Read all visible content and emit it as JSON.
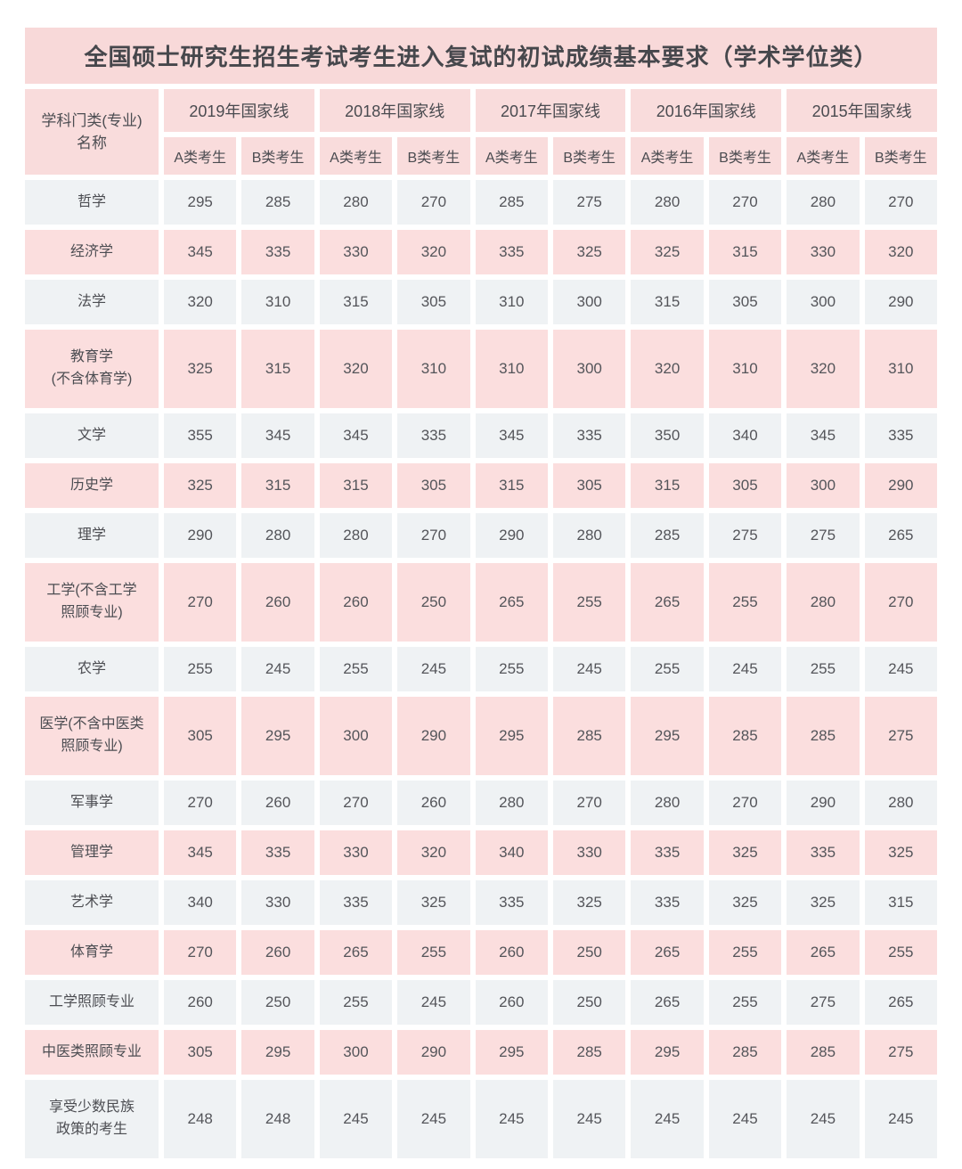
{
  "title": "全国硕士研究生招生考试考生进入复试的初试成绩基本要求（学术学位类）",
  "colors": {
    "title_bg": "#f8d9d9",
    "header_bg": "#f9dcdc",
    "row_pink": "#fbdede",
    "row_gray": "#eff2f4",
    "text": "#4c4d52"
  },
  "chart_data": {
    "type": "table",
    "title": "全国硕士研究生招生考试考生进入复试的初试成绩基本要求（学术学位类）",
    "corner_header": "学科门类(专业)\n名称",
    "year_groups": [
      "2019年国家线",
      "2018年国家线",
      "2017年国家线",
      "2016年国家线",
      "2015年国家线"
    ],
    "sub_headers": [
      "A类考生",
      "B类考生"
    ],
    "rows": [
      {
        "label": "哲学",
        "values": [
          295,
          285,
          280,
          270,
          285,
          275,
          280,
          270,
          280,
          270
        ]
      },
      {
        "label": "经济学",
        "values": [
          345,
          335,
          330,
          320,
          335,
          325,
          325,
          315,
          330,
          320
        ]
      },
      {
        "label": "法学",
        "values": [
          320,
          310,
          315,
          305,
          310,
          300,
          315,
          305,
          300,
          290
        ]
      },
      {
        "label": "教育学(不含体育学)",
        "label_display": "教育学\n(不含体育学)",
        "values": [
          325,
          315,
          320,
          310,
          310,
          300,
          320,
          310,
          320,
          310
        ]
      },
      {
        "label": "文学",
        "values": [
          355,
          345,
          345,
          335,
          345,
          335,
          350,
          340,
          345,
          335
        ]
      },
      {
        "label": "历史学",
        "values": [
          325,
          315,
          315,
          305,
          315,
          305,
          315,
          305,
          300,
          290
        ]
      },
      {
        "label": "理学",
        "values": [
          290,
          280,
          280,
          270,
          290,
          280,
          285,
          275,
          275,
          265
        ]
      },
      {
        "label": "工学(不含工学照顾专业)",
        "label_display": "工学(不含工学\n照顾专业)",
        "values": [
          270,
          260,
          260,
          250,
          265,
          255,
          265,
          255,
          280,
          270
        ]
      },
      {
        "label": "农学",
        "values": [
          255,
          245,
          255,
          245,
          255,
          245,
          255,
          245,
          255,
          245
        ]
      },
      {
        "label": "医学(不含中医类照顾专业)",
        "label_display": "医学(不含中医类\n照顾专业)",
        "values": [
          305,
          295,
          300,
          290,
          295,
          285,
          295,
          285,
          285,
          275
        ]
      },
      {
        "label": "军事学",
        "values": [
          270,
          260,
          270,
          260,
          280,
          270,
          280,
          270,
          290,
          280
        ]
      },
      {
        "label": "管理学",
        "values": [
          345,
          335,
          330,
          320,
          340,
          330,
          335,
          325,
          335,
          325
        ]
      },
      {
        "label": "艺术学",
        "values": [
          340,
          330,
          335,
          325,
          335,
          325,
          335,
          325,
          325,
          315
        ]
      },
      {
        "label": "体育学",
        "values": [
          270,
          260,
          265,
          255,
          260,
          250,
          265,
          255,
          265,
          255
        ]
      },
      {
        "label": "工学照顾专业",
        "values": [
          260,
          250,
          255,
          245,
          260,
          250,
          265,
          255,
          275,
          265
        ]
      },
      {
        "label": "中医类照顾专业",
        "values": [
          305,
          295,
          300,
          290,
          295,
          285,
          295,
          285,
          285,
          275
        ]
      },
      {
        "label": "享受少数民族政策的考生",
        "label_display": "享受少数民族\n政策的考生",
        "values": [
          248,
          248,
          245,
          245,
          245,
          245,
          245,
          245,
          245,
          245
        ]
      }
    ]
  }
}
